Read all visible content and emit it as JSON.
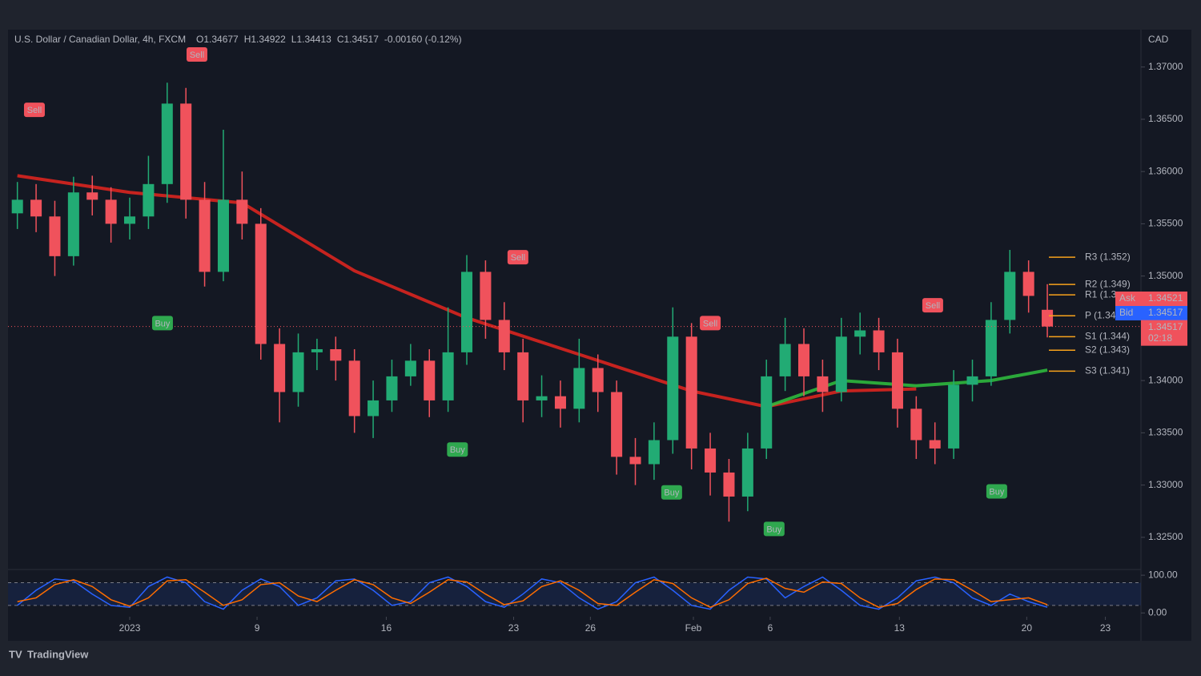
{
  "chart_data": {
    "type": "candlestick",
    "symbol": "U.S. Dollar / Canadian Dollar, 4h, FXCM",
    "ohlc_header": [
      "O1.34677",
      "H1.34922",
      "L1.34413",
      "C1.34517",
      "-0.00160 (-0.12%)"
    ],
    "currency": "CAD",
    "brand": "TradingView",
    "up_color": "#22ab74",
    "down_color": "#f0525c",
    "open": [
      1.356,
      1.3573,
      1.3557,
      1.3519,
      1.358,
      1.3573,
      1.355,
      1.3557,
      1.3588,
      1.3665,
      1.3573,
      1.3504,
      1.3573,
      1.355,
      1.3435,
      1.3389,
      1.3427,
      1.343,
      1.3419,
      1.3366,
      1.3381,
      1.3404,
      1.3419,
      1.3381,
      1.3427,
      1.3504,
      1.3458,
      1.3427,
      1.3381,
      1.3385,
      1.3373,
      1.3412,
      1.3389,
      1.3327,
      1.332,
      1.3343,
      1.3442,
      1.3335,
      1.3312,
      1.3289,
      1.3335,
      1.3404,
      1.3435,
      1.3404,
      1.3389,
      1.3442,
      1.3448,
      1.3427,
      1.3373,
      1.3343,
      1.3335,
      1.3396,
      1.3404,
      1.3458,
      1.3504,
      1.34677
    ],
    "high": [
      1.359,
      1.3588,
      1.3572,
      1.3595,
      1.3596,
      1.3585,
      1.3575,
      1.3615,
      1.3685,
      1.368,
      1.359,
      1.364,
      1.36,
      1.3565,
      1.345,
      1.3445,
      1.344,
      1.3442,
      1.343,
      1.34,
      1.342,
      1.3435,
      1.343,
      1.347,
      1.352,
      1.3515,
      1.3475,
      1.344,
      1.3405,
      1.34,
      1.344,
      1.3425,
      1.34,
      1.3345,
      1.336,
      1.347,
      1.3455,
      1.335,
      1.3325,
      1.335,
      1.342,
      1.346,
      1.345,
      1.342,
      1.346,
      1.3465,
      1.346,
      1.344,
      1.3385,
      1.336,
      1.341,
      1.342,
      1.3475,
      1.3525,
      1.3515,
      1.34922
    ],
    "low": [
      1.3545,
      1.3542,
      1.35,
      1.351,
      1.3558,
      1.3532,
      1.3535,
      1.3545,
      1.357,
      1.3555,
      1.349,
      1.3495,
      1.3535,
      1.342,
      1.336,
      1.3375,
      1.341,
      1.34,
      1.335,
      1.3345,
      1.337,
      1.3395,
      1.3365,
      1.337,
      1.3415,
      1.344,
      1.341,
      1.336,
      1.3365,
      1.3355,
      1.336,
      1.337,
      1.331,
      1.33,
      1.3305,
      1.333,
      1.3315,
      1.329,
      1.3265,
      1.3275,
      1.3325,
      1.339,
      1.3385,
      1.337,
      1.338,
      1.3425,
      1.341,
      1.3355,
      1.3325,
      1.332,
      1.3325,
      1.338,
      1.3395,
      1.3445,
      1.3465,
      1.34413
    ],
    "close": [
      1.3573,
      1.3557,
      1.3519,
      1.358,
      1.3573,
      1.355,
      1.3557,
      1.3588,
      1.3665,
      1.3573,
      1.3504,
      1.3573,
      1.355,
      1.3435,
      1.3389,
      1.3427,
      1.343,
      1.3419,
      1.3366,
      1.3381,
      1.3404,
      1.3419,
      1.3381,
      1.3427,
      1.3504,
      1.3458,
      1.3427,
      1.3381,
      1.3385,
      1.3373,
      1.3412,
      1.3389,
      1.3327,
      1.332,
      1.3343,
      1.3442,
      1.3335,
      1.3312,
      1.3289,
      1.3335,
      1.3404,
      1.3435,
      1.3404,
      1.3389,
      1.3442,
      1.3448,
      1.3427,
      1.3373,
      1.3343,
      1.3335,
      1.3396,
      1.3404,
      1.3458,
      1.3504,
      1.3481,
      1.34517
    ],
    "xlim": [
      -0.5,
      60
    ],
    "xticks": [
      {
        "value": 6,
        "label": "2023"
      },
      {
        "value": 12.8,
        "label": "9"
      },
      {
        "value": 19.7,
        "label": "16"
      },
      {
        "value": 26.5,
        "label": "23"
      },
      {
        "value": 30.6,
        "label": "26"
      },
      {
        "value": 36.1,
        "label": "Feb"
      },
      {
        "value": 40.2,
        "label": "6"
      },
      {
        "value": 47.1,
        "label": "13"
      },
      {
        "value": 53.9,
        "label": "20"
      },
      {
        "value": 58.1,
        "label": "23"
      }
    ],
    "ylim": [
      1.322,
      1.3735
    ],
    "yticks": [
      {
        "value": 1.37,
        "label": "1.37000"
      },
      {
        "value": 1.365,
        "label": "1.36500"
      },
      {
        "value": 1.36,
        "label": "1.36000"
      },
      {
        "value": 1.355,
        "label": "1.35500"
      },
      {
        "value": 1.35,
        "label": "1.35000"
      },
      {
        "value": 1.345,
        "label": "1.34500"
      },
      {
        "value": 1.34,
        "label": "1.34000"
      },
      {
        "value": 1.335,
        "label": "1.33500"
      },
      {
        "value": 1.33,
        "label": "1.33000"
      },
      {
        "value": 1.325,
        "label": "1.32500"
      }
    ],
    "moving_averages": [
      {
        "color": "#e5261f",
        "x": [
          0,
          6,
          12,
          18,
          24,
          30,
          36,
          40,
          44,
          48
        ],
        "values": [
          1.3596,
          1.358,
          1.357,
          1.3505,
          1.346,
          1.3425,
          1.339,
          1.3375,
          1.339,
          1.3392
        ]
      },
      {
        "color": "#2fc23e",
        "x": [
          40,
          44,
          48,
          52,
          55
        ],
        "values": [
          1.3375,
          1.34,
          1.3395,
          1.34,
          1.341
        ]
      }
    ],
    "pivots": [
      {
        "label": "R3 (1.352)",
        "value": 1.3518
      },
      {
        "label": "R2 (1.349)",
        "value": 1.3492
      },
      {
        "label": "R1 (1.3",
        "value": 1.3482
      },
      {
        "label": "P (1.34",
        "value": 1.3462
      },
      {
        "label": "S1 (1.344)",
        "value": 1.3442
      },
      {
        "label": "S2 (1.343)",
        "value": 1.3429
      },
      {
        "label": "S3 (1.341)",
        "value": 1.3409
      }
    ],
    "signals": [
      {
        "text": "Sell",
        "x": 0.91,
        "y": 1.3659
      },
      {
        "text": "Sell",
        "x": 9.59,
        "y": 1.3712
      },
      {
        "text": "Sell",
        "x": 26.73,
        "y": 1.3518
      },
      {
        "text": "Sell",
        "x": 37.0,
        "y": 1.3455
      },
      {
        "text": "Sell",
        "x": 48.88,
        "y": 1.3472
      },
      {
        "text": "Buy",
        "x": 7.75,
        "y": 1.3455
      },
      {
        "text": "Buy",
        "x": 23.5,
        "y": 1.3334
      },
      {
        "text": "Buy",
        "x": 34.94,
        "y": 1.3293
      },
      {
        "text": "Buy",
        "x": 40.41,
        "y": 1.3258
      },
      {
        "text": "Buy",
        "x": 52.3,
        "y": 1.3294
      }
    ],
    "ask": {
      "label": "Ask",
      "value": 1.34521
    },
    "bid": {
      "label": "Bid",
      "value": 1.34517
    },
    "countdown": "02:18",
    "oscillator": {
      "ylim": [
        -10,
        113
      ],
      "yticks": [
        {
          "value": 100,
          "label": "100.00"
        },
        {
          "value": 0,
          "label": "0.00"
        }
      ],
      "bands": [
        20,
        80
      ],
      "series": [
        {
          "color": "#2962ff",
          "values": [
            20,
            60,
            90,
            85,
            50,
            20,
            15,
            70,
            95,
            80,
            30,
            10,
            60,
            90,
            70,
            20,
            40,
            85,
            90,
            60,
            20,
            30,
            80,
            95,
            70,
            30,
            15,
            50,
            90,
            80,
            40,
            10,
            30,
            80,
            95,
            60,
            20,
            10,
            60,
            95,
            90,
            40,
            70,
            95,
            60,
            20,
            10,
            40,
            85,
            95,
            80,
            40,
            20,
            50,
            30,
            15
          ]
        },
        {
          "color": "#ff6d00",
          "values": [
            30,
            40,
            75,
            88,
            70,
            35,
            18,
            40,
            85,
            88,
            55,
            20,
            35,
            75,
            80,
            45,
            30,
            60,
            88,
            75,
            40,
            25,
            55,
            88,
            82,
            50,
            22,
            32,
            70,
            85,
            60,
            25,
            20,
            55,
            88,
            78,
            40,
            15,
            35,
            78,
            92,
            65,
            55,
            82,
            78,
            40,
            15,
            25,
            62,
            90,
            88,
            60,
            30,
            35,
            40,
            22
          ]
        }
      ]
    }
  }
}
